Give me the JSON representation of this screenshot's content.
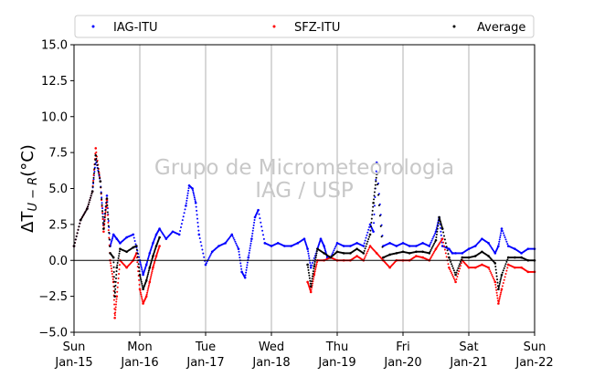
{
  "colors": {
    "iag": "#0000ff",
    "sfz": "#ff0000",
    "avg": "#000000",
    "grid": "#b0b0b0",
    "watermark": "#c8c8c8"
  },
  "watermark": {
    "line1": "Grupo de Micrometeorologia",
    "line2": "IAG / USP"
  },
  "chart_data": {
    "type": "scatter",
    "title": "",
    "xlabel": "",
    "ylabel": "ΔT",
    "ylabel_sub": "U − R",
    "ylabel_unit": "(°C)",
    "xlim": [
      0,
      7
    ],
    "ylim": [
      -5.0,
      15.0
    ],
    "yticks": [
      -5.0,
      -2.5,
      0.0,
      2.5,
      5.0,
      7.5,
      10.0,
      12.5,
      15.0
    ],
    "yticklabels": [
      "−5.0",
      "−2.5",
      "0.0",
      "2.5",
      "5.0",
      "7.5",
      "10.0",
      "12.5",
      "15.0"
    ],
    "xticks": [
      0,
      1,
      2,
      3,
      4,
      5,
      6,
      7
    ],
    "xticklabels_day": [
      "Sun",
      "Mon",
      "Tue",
      "Wed",
      "Thu",
      "Fri",
      "Sat",
      "Sun"
    ],
    "xticklabels_date": [
      "Jan-15",
      "Jan-16",
      "Jan-17",
      "Jan-18",
      "Jan-19",
      "Jan-20",
      "Jan-21",
      "Jan-22"
    ],
    "grid": "vertical",
    "zero_line": true,
    "legend_placement": "top",
    "series": [
      {
        "name": "IAG-ITU",
        "x": [
          0.0,
          0.1,
          0.2,
          0.28,
          0.33,
          0.4,
          0.45,
          0.5,
          0.55,
          0.6,
          0.65,
          0.7,
          0.8,
          0.9,
          1.0,
          1.05,
          1.1,
          1.15,
          1.2,
          1.25,
          1.3,
          1.4,
          1.5,
          1.6,
          1.7,
          1.75,
          1.8,
          1.85,
          1.9,
          2.0,
          2.1,
          2.2,
          2.3,
          2.4,
          2.5,
          2.55,
          2.6,
          2.65,
          2.7,
          2.75,
          2.8,
          2.9,
          3.0,
          3.1,
          3.2,
          3.3,
          3.4,
          3.5,
          3.55,
          3.6,
          3.7,
          3.75,
          3.8,
          3.85,
          3.9,
          4.0,
          4.1,
          4.2,
          4.3,
          4.4,
          4.5,
          4.55,
          4.6,
          4.7,
          4.8,
          4.9,
          5.0,
          5.1,
          5.2,
          5.3,
          5.4,
          5.5,
          5.55,
          5.6,
          5.7,
          5.75,
          5.8,
          5.9,
          6.0,
          6.1,
          6.2,
          6.3,
          6.4,
          6.45,
          6.5,
          6.6,
          6.7,
          6.8,
          6.9,
          7.0
        ],
        "y": [
          1.0,
          2.8,
          3.6,
          4.8,
          7.0,
          5.5,
          2.5,
          4.5,
          1.0,
          1.8,
          1.5,
          1.2,
          1.6,
          1.8,
          0.0,
          -1.0,
          -0.3,
          0.5,
          1.2,
          1.8,
          2.2,
          1.5,
          2.0,
          1.8,
          3.8,
          5.2,
          5.0,
          4.0,
          1.8,
          -0.3,
          0.6,
          1.0,
          1.2,
          1.8,
          0.8,
          -0.8,
          -1.2,
          0.2,
          1.5,
          3.0,
          3.5,
          1.2,
          1.0,
          1.2,
          1.0,
          1.0,
          1.2,
          1.5,
          0.8,
          -0.5,
          0.8,
          1.5,
          1.0,
          0.2,
          0.2,
          1.2,
          1.0,
          1.0,
          1.2,
          1.0,
          2.5,
          2.0,
          6.8,
          1.0,
          1.2,
          1.0,
          1.2,
          1.0,
          1.0,
          1.2,
          1.0,
          2.0,
          3.0,
          1.0,
          0.8,
          0.5,
          0.5,
          0.5,
          0.8,
          1.0,
          1.5,
          1.2,
          0.5,
          1.0,
          2.2,
          1.0,
          0.8,
          0.5,
          0.8,
          0.8
        ]
      },
      {
        "name": "SFZ-ITU",
        "x": [
          0.0,
          0.1,
          0.2,
          0.28,
          0.33,
          0.4,
          0.45,
          0.5,
          0.55,
          0.6,
          0.62,
          0.65,
          0.7,
          0.8,
          0.9,
          0.95,
          1.0,
          1.05,
          1.1,
          1.15,
          1.2,
          1.25,
          1.3,
          3.55,
          3.6,
          3.65,
          3.7,
          3.8,
          3.9,
          4.0,
          4.1,
          4.2,
          4.3,
          4.4,
          4.5,
          4.6,
          4.7,
          4.8,
          4.9,
          5.0,
          5.1,
          5.2,
          5.3,
          5.4,
          5.5,
          5.6,
          5.7,
          5.8,
          5.9,
          6.0,
          6.1,
          6.2,
          6.3,
          6.4,
          6.45,
          6.5,
          6.6,
          6.7,
          6.8,
          6.9,
          7.0
        ],
        "y": [
          1.0,
          2.8,
          3.6,
          4.8,
          7.8,
          5.5,
          2.0,
          4.2,
          0.0,
          -1.5,
          -4.0,
          -2.5,
          0.0,
          -0.5,
          0.0,
          0.5,
          -2.0,
          -3.0,
          -2.5,
          -1.5,
          -0.5,
          0.3,
          1.0,
          -1.5,
          -2.2,
          -1.0,
          0.0,
          0.0,
          0.2,
          0.0,
          0.0,
          0.0,
          0.3,
          0.0,
          1.0,
          0.5,
          0.0,
          -0.5,
          0.0,
          0.0,
          0.0,
          0.3,
          0.2,
          0.0,
          0.8,
          1.5,
          -0.5,
          -1.5,
          0.0,
          -0.5,
          -0.5,
          -0.3,
          -0.5,
          -1.5,
          -3.0,
          -2.0,
          -0.3,
          -0.5,
          -0.5,
          -0.8,
          -0.8
        ]
      },
      {
        "name": "Average",
        "x": [
          0.0,
          0.1,
          0.2,
          0.28,
          0.33,
          0.4,
          0.45,
          0.5,
          0.55,
          0.6,
          0.62,
          0.65,
          0.7,
          0.8,
          0.9,
          0.95,
          1.0,
          1.05,
          1.1,
          1.15,
          1.2,
          1.25,
          1.3,
          3.55,
          3.6,
          3.65,
          3.7,
          3.8,
          3.9,
          4.0,
          4.1,
          4.2,
          4.3,
          4.4,
          4.5,
          4.55,
          4.6,
          4.7,
          4.8,
          4.9,
          5.0,
          5.1,
          5.2,
          5.3,
          5.4,
          5.5,
          5.55,
          5.6,
          5.7,
          5.8,
          5.9,
          6.0,
          6.1,
          6.2,
          6.3,
          6.4,
          6.45,
          6.5,
          6.6,
          6.7,
          6.8,
          6.9,
          7.0
        ],
        "y": [
          1.0,
          2.8,
          3.6,
          4.8,
          7.3,
          5.5,
          2.2,
          4.3,
          0.5,
          0.2,
          -2.5,
          -0.5,
          0.8,
          0.6,
          0.9,
          1.0,
          -1.0,
          -2.0,
          -1.4,
          -0.5,
          0.3,
          1.0,
          1.6,
          -0.3,
          -1.8,
          -0.4,
          0.8,
          0.5,
          0.2,
          0.6,
          0.5,
          0.5,
          0.8,
          0.5,
          1.8,
          4.0,
          6.0,
          0.2,
          0.4,
          0.5,
          0.6,
          0.5,
          0.6,
          0.6,
          0.5,
          1.4,
          3.0,
          2.2,
          0.2,
          -1.0,
          0.2,
          0.2,
          0.3,
          0.6,
          0.3,
          -0.2,
          -2.0,
          -1.0,
          0.2,
          0.2,
          0.2,
          0.0,
          0.0
        ]
      }
    ]
  }
}
